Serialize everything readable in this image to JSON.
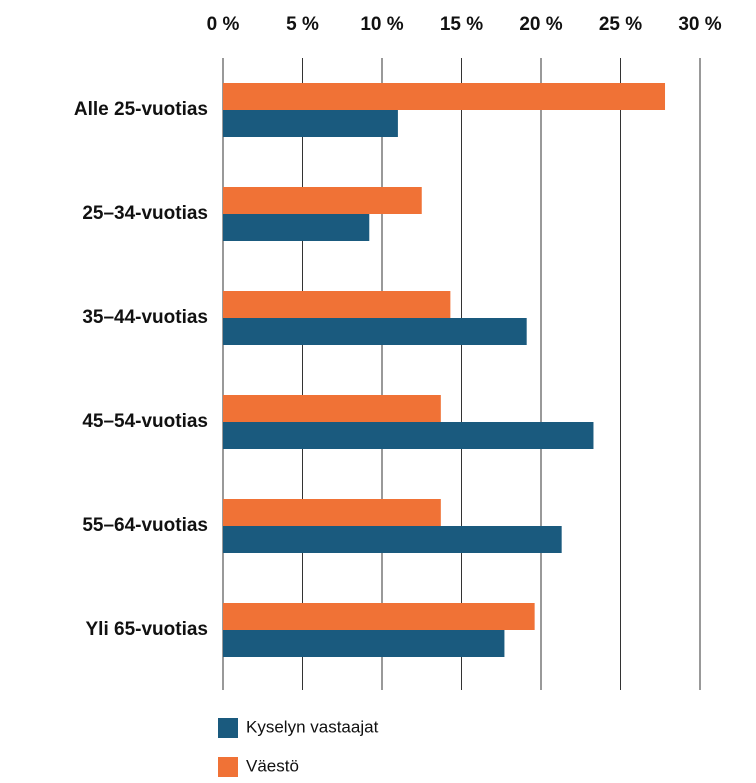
{
  "chart_data": {
    "type": "bar",
    "orientation": "horizontal",
    "categories": [
      "Alle 25-vuotias",
      "25–34-vuotias",
      "35–44-vuotias",
      "45–54-vuotias",
      "55–64-vuotias",
      "Yli 65-vuotias"
    ],
    "series": [
      {
        "name": "Kyselyn vastaajat",
        "color": "#1a5a7e",
        "values": [
          11.0,
          9.2,
          19.1,
          23.3,
          21.3,
          17.7
        ]
      },
      {
        "name": "Väestö",
        "color": "#f07236",
        "values": [
          27.8,
          12.5,
          14.3,
          13.7,
          13.7,
          19.6
        ]
      }
    ],
    "xlim": [
      0,
      30
    ],
    "xticks": [
      {
        "value": 0,
        "label": "0 %"
      },
      {
        "value": 5,
        "label": "5 %"
      },
      {
        "value": 10,
        "label": "10 %"
      },
      {
        "value": 15,
        "label": "15 %"
      },
      {
        "value": 20,
        "label": "20 %"
      },
      {
        "value": 25,
        "label": "25 %"
      },
      {
        "value": 30,
        "label": "30 %"
      }
    ],
    "grid": true
  }
}
